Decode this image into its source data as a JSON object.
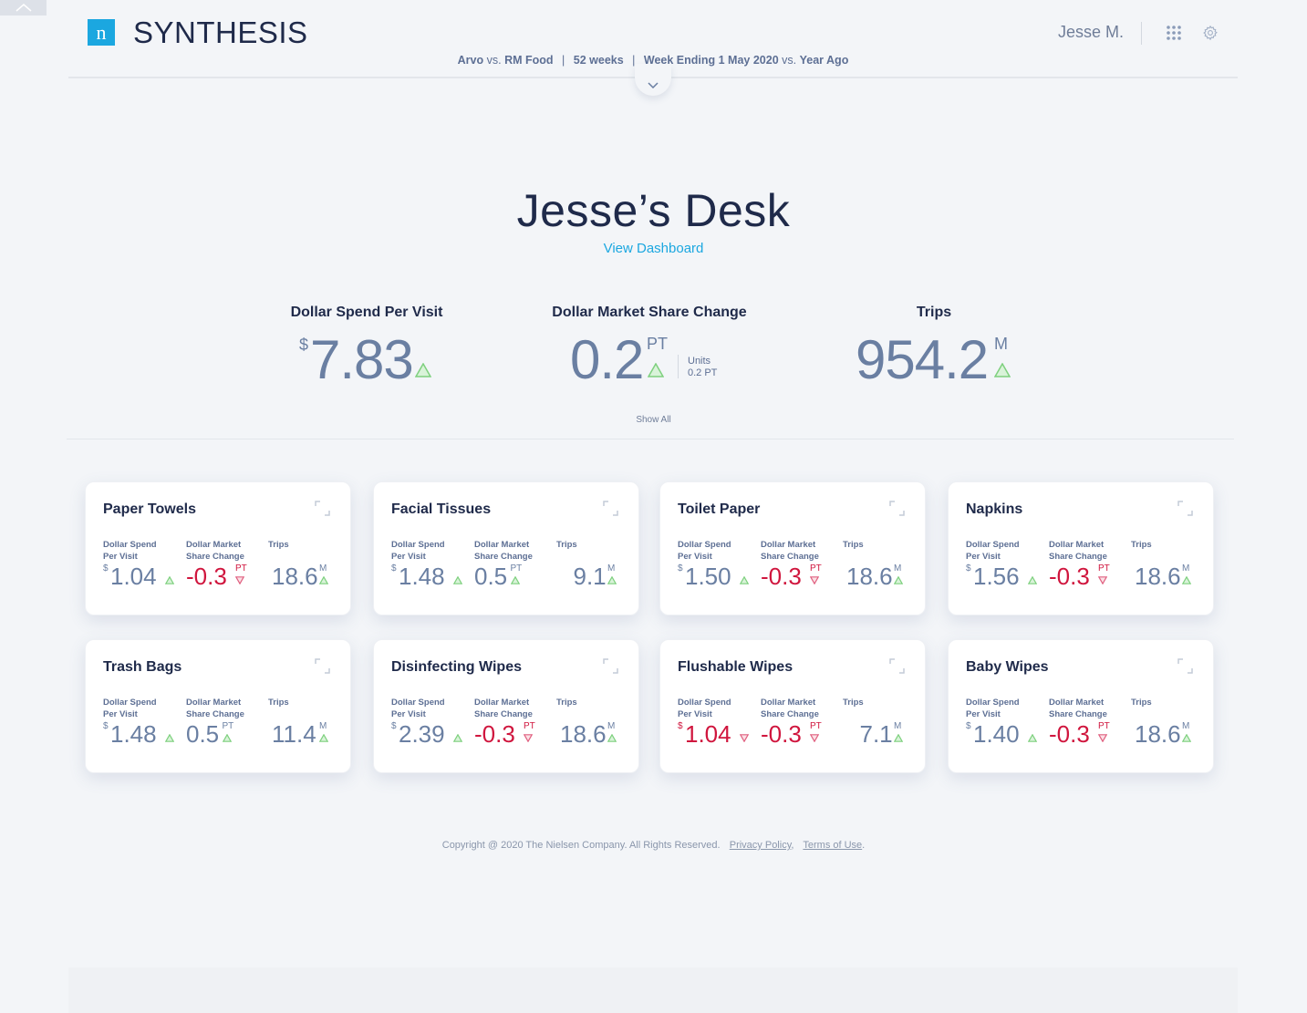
{
  "app": {
    "logo_letter": "n",
    "title": "SYNTHESIS"
  },
  "header": {
    "user_name": "Jesse M.",
    "context": {
      "brand": "Arvo",
      "vs1": "vs.",
      "market": "RM Food",
      "period": "52 weeks",
      "week_ending": "Week Ending 1 May 2020",
      "vs2": "vs.",
      "comparison": "Year Ago",
      "sep": "|"
    }
  },
  "main": {
    "title": "Jesse’s Desk",
    "view_dashboard": "View Dashboard",
    "show_all": "Show All"
  },
  "kpis": [
    {
      "title": "Dollar Spend Per Visit",
      "prefix": "$",
      "value": "7.83",
      "suffix": "",
      "trend": "up"
    },
    {
      "title": "Dollar Market Share Change",
      "prefix": "",
      "value": "0.2",
      "suffix": "PT",
      "trend": "up",
      "note_label": "Units",
      "note_value": "0.2 PT"
    },
    {
      "title": "Trips",
      "prefix": "",
      "value": "954.2",
      "suffix": "M",
      "trend": "up"
    }
  ],
  "metric_labels": {
    "spend_line1": "Dollar Spend",
    "spend_line2": "Per Visit",
    "share_line1": "Dollar Market",
    "share_line2": "Share Change",
    "trips": "Trips"
  },
  "cards": [
    {
      "title": "Paper Towels",
      "spend": "1.04",
      "spend_trend": "up",
      "share": "-0.3",
      "share_trend": "down",
      "trips": "18.6",
      "trips_trend": "up"
    },
    {
      "title": "Facial Tissues",
      "spend": "1.48",
      "spend_trend": "up",
      "share": "0.5",
      "share_trend": "up",
      "trips": "9.1",
      "trips_trend": "up"
    },
    {
      "title": "Toilet Paper",
      "spend": "1.50",
      "spend_trend": "up",
      "share": "-0.3",
      "share_trend": "down",
      "trips": "18.6",
      "trips_trend": "up"
    },
    {
      "title": "Napkins",
      "spend": "1.56",
      "spend_trend": "up",
      "share": "-0.3",
      "share_trend": "down",
      "trips": "18.6",
      "trips_trend": "up"
    },
    {
      "title": "Trash Bags",
      "spend": "1.48",
      "spend_trend": "up",
      "share": "0.5",
      "share_trend": "up",
      "trips": "11.4",
      "trips_trend": "up"
    },
    {
      "title": "Disinfecting Wipes",
      "spend": "2.39",
      "spend_trend": "up",
      "share": "-0.3",
      "share_trend": "down",
      "trips": "18.6",
      "trips_trend": "up"
    },
    {
      "title": "Flushable Wipes",
      "spend": "1.04",
      "spend_trend": "down",
      "share": "-0.3",
      "share_trend": "down",
      "trips": "7.1",
      "trips_trend": "up"
    },
    {
      "title": "Baby Wipes",
      "spend": "1.40",
      "spend_trend": "up",
      "share": "-0.3",
      "share_trend": "down",
      "trips": "18.6",
      "trips_trend": "up"
    }
  ],
  "units": {
    "dollar": "$",
    "pt": "PT",
    "million": "M"
  },
  "footer": {
    "copyright": "Copyright @ 2020 The Nielsen Company. All Rights Reserved.",
    "privacy": "Privacy Policy",
    "terms": "Terms of Use",
    "comma": ",",
    "period": "."
  },
  "colors": {
    "accent": "#1ba7e0",
    "positive": "#7ed07e",
    "negative": "#d0163e",
    "value": "#6a7fa2",
    "heading": "#1f2a4a"
  },
  "icons": {
    "collapse_top": "chevron-up-icon",
    "header_toggle": "chevron-down-icon",
    "apps": "grid-icon",
    "settings": "gear-icon",
    "card_expand": "expand-icon",
    "trend_up": "triangle-up-icon",
    "trend_down": "triangle-down-icon"
  }
}
